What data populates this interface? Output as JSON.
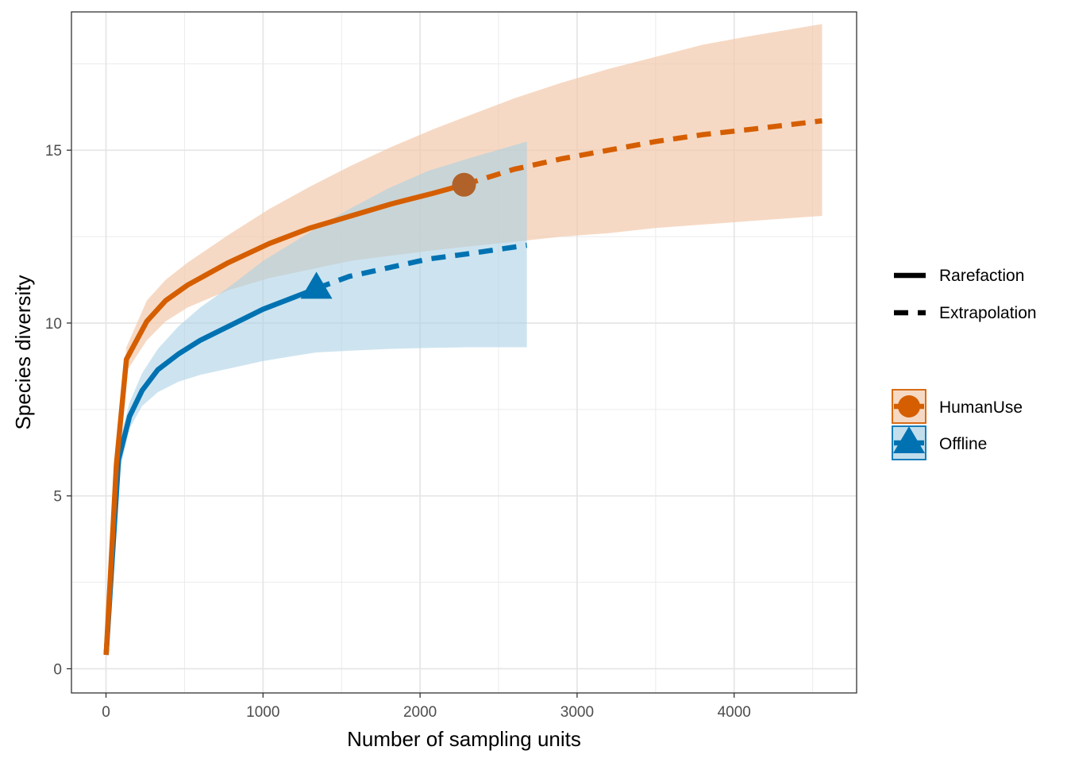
{
  "chart_data": {
    "type": "line",
    "title": "",
    "xlabel": "Number of sampling units",
    "ylabel": "Species diversity",
    "xlim": [
      -220,
      4780
    ],
    "ylim": [
      -0.7,
      19.0
    ],
    "x_ticks": [
      0,
      1000,
      2000,
      3000,
      4000
    ],
    "x_tick_labels": [
      "0",
      "1000",
      "2000",
      "3000",
      "4000"
    ],
    "y_ticks": [
      0,
      5,
      10,
      15
    ],
    "y_tick_labels": [
      "0",
      "5",
      "10",
      "15"
    ],
    "grid": true,
    "legend_position": "right",
    "linetype_legend": [
      {
        "label": "Rarefaction",
        "style": "solid"
      },
      {
        "label": "Extrapolation",
        "style": "dashed"
      }
    ],
    "series": [
      {
        "name": "HumanUse",
        "color": "#D55E00",
        "marker": "circle",
        "observed": {
          "x": 2280,
          "y": 14.0
        },
        "rarefaction": {
          "x": [
            1,
            66,
            130,
            260,
            380,
            520,
            780,
            1040,
            1300,
            1560,
            1820,
            2080,
            2280
          ],
          "y": [
            0.4,
            5.9,
            8.95,
            10.05,
            10.65,
            11.1,
            11.75,
            12.3,
            12.75,
            13.1,
            13.45,
            13.75,
            14.0
          ]
        },
        "extrapolation": {
          "x": [
            2280,
            2600,
            2900,
            3200,
            3500,
            3800,
            4100,
            4560
          ],
          "y": [
            14.0,
            14.45,
            14.75,
            15.0,
            15.25,
            15.45,
            15.6,
            15.85
          ]
        },
        "ci_x": [
          1,
          66,
          130,
          260,
          380,
          520,
          780,
          1040,
          1300,
          1560,
          1820,
          2080,
          2280,
          2600,
          2900,
          3200,
          3500,
          3800,
          4100,
          4560
        ],
        "ci_lower": [
          0.3,
          5.5,
          8.6,
          9.5,
          10.05,
          10.45,
          10.95,
          11.3,
          11.55,
          11.8,
          11.95,
          12.1,
          12.2,
          12.35,
          12.5,
          12.6,
          12.75,
          12.85,
          12.95,
          13.1
        ],
        "ci_upper": [
          0.5,
          6.3,
          9.3,
          10.65,
          11.25,
          11.75,
          12.55,
          13.3,
          13.95,
          14.55,
          15.1,
          15.6,
          15.95,
          16.5,
          16.95,
          17.35,
          17.7,
          18.05,
          18.3,
          18.65
        ]
      },
      {
        "name": "Offline",
        "color": "#0072B2",
        "marker": "triangle",
        "observed": {
          "x": 1340,
          "y": 11.0
        },
        "rarefaction": {
          "x": [
            1,
            80,
            150,
            230,
            330,
            460,
            600,
            800,
            1000,
            1200,
            1340
          ],
          "y": [
            0.4,
            6.05,
            7.3,
            8.05,
            8.65,
            9.1,
            9.5,
            9.95,
            10.4,
            10.75,
            11.0
          ],
          "marker_pos": "end"
        },
        "extrapolation": {
          "x": [
            1340,
            1550,
            1800,
            2050,
            2300,
            2680
          ],
          "y": [
            11.0,
            11.35,
            11.6,
            11.85,
            12.0,
            12.25
          ]
        },
        "ci_x": [
          1,
          80,
          150,
          230,
          330,
          460,
          600,
          800,
          1000,
          1200,
          1340,
          1550,
          1800,
          2050,
          2300,
          2680
        ],
        "ci_lower": [
          0.3,
          5.6,
          6.95,
          7.6,
          8.0,
          8.3,
          8.5,
          8.7,
          8.9,
          9.05,
          9.15,
          9.2,
          9.25,
          9.28,
          9.3,
          9.3
        ],
        "ci_upper": [
          0.5,
          6.5,
          7.7,
          8.55,
          9.25,
          9.9,
          10.45,
          11.1,
          11.8,
          12.35,
          12.75,
          13.3,
          13.9,
          14.4,
          14.75,
          15.25
        ]
      }
    ]
  }
}
